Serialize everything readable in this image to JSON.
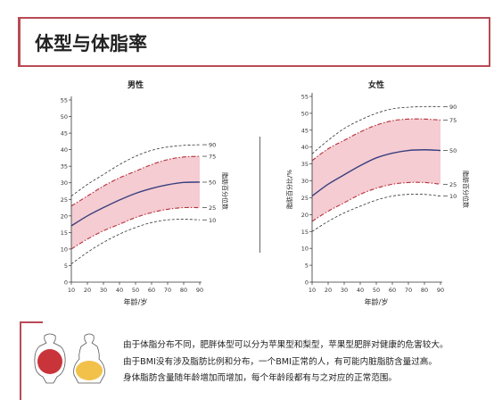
{
  "header": {
    "title": "体型与体脂率"
  },
  "charts": [
    {
      "title": "男性",
      "xlabel": "年龄/岁",
      "ylabel": "脂肪百分比/%",
      "right_label": "脂肪百分位数"
    },
    {
      "title": "女性",
      "xlabel": "年龄/岁",
      "ylabel": "脂肪百分比/%",
      "right_label": "脂肪百分位数"
    }
  ],
  "notes": [
    "由于体脂分布不同，肥胖体型可以分为苹果型和梨型，苹果型肥胖对健康的危害较大。",
    "由于BMI没有涉及脂肪比例和分布，一个BMI正常的人，有可能内脏脂肪含量过高。",
    "身体脂肪含量随年龄增加而增加，每个年龄段都有与之对应的正常范围。"
  ],
  "illustrations": {
    "apple_color": "#c9343a",
    "pear_color": "#f2c14a"
  },
  "colors": {
    "accent": "#b94a55",
    "band_fill": "#f4ccd2",
    "median_line": "#3a3f7e",
    "band_line": "#b5303a"
  },
  "chart_data": [
    {
      "type": "line",
      "title": "男性",
      "xlabel": "年龄/岁",
      "ylabel": "脂肪百分比/%",
      "xlim": [
        10,
        90
      ],
      "ylim": [
        0,
        55
      ],
      "xticks": [
        10,
        20,
        30,
        40,
        50,
        60,
        70,
        80,
        90
      ],
      "yticks": [
        0,
        5,
        10,
        15,
        20,
        25,
        30,
        35,
        40,
        45,
        50,
        55
      ],
      "x": [
        10,
        20,
        30,
        40,
        50,
        60,
        70,
        80,
        90
      ],
      "series": [
        {
          "name": "10",
          "values": [
            5.5,
            9.0,
            12.0,
            14.5,
            16.5,
            18.0,
            18.8,
            19.0,
            18.8
          ]
        },
        {
          "name": "25",
          "values": [
            10.0,
            13.0,
            15.5,
            17.5,
            19.5,
            21.0,
            22.0,
            22.5,
            22.5
          ]
        },
        {
          "name": "50",
          "values": [
            17.0,
            20.0,
            22.5,
            24.8,
            26.8,
            28.3,
            29.4,
            30.1,
            30.2
          ]
        },
        {
          "name": "75",
          "values": [
            23.0,
            26.0,
            29.0,
            31.5,
            33.5,
            35.5,
            37.0,
            37.8,
            38.0
          ]
        },
        {
          "name": "90",
          "values": [
            26.0,
            29.5,
            32.5,
            35.5,
            38.0,
            39.8,
            40.8,
            41.3,
            41.5
          ]
        }
      ],
      "right_ticks": [
        "90",
        "75",
        "50",
        "25",
        "10"
      ]
    },
    {
      "type": "line",
      "title": "女性",
      "xlabel": "年龄/岁",
      "ylabel": "脂肪百分比/%",
      "xlim": [
        10,
        90
      ],
      "ylim": [
        0,
        55
      ],
      "xticks": [
        10,
        20,
        30,
        40,
        50,
        60,
        70,
        80,
        90
      ],
      "yticks": [
        0,
        5,
        10,
        15,
        20,
        25,
        30,
        35,
        40,
        45,
        50,
        55
      ],
      "x": [
        10,
        20,
        30,
        40,
        50,
        60,
        70,
        80,
        90
      ],
      "series": [
        {
          "name": "10",
          "values": [
            15.0,
            18.0,
            20.5,
            22.5,
            24.3,
            25.5,
            26.0,
            26.0,
            25.5
          ]
        },
        {
          "name": "25",
          "values": [
            18.0,
            21.0,
            23.5,
            26.0,
            27.8,
            29.0,
            29.5,
            29.5,
            29.0
          ]
        },
        {
          "name": "50",
          "values": [
            25.5,
            29.0,
            31.8,
            34.5,
            36.8,
            38.2,
            39.0,
            39.2,
            39.0
          ]
        },
        {
          "name": "75",
          "values": [
            36.0,
            39.5,
            42.0,
            44.5,
            46.5,
            47.8,
            48.3,
            48.3,
            48.0
          ]
        },
        {
          "name": "90",
          "values": [
            38.0,
            42.0,
            45.5,
            48.0,
            50.0,
            51.3,
            51.8,
            52.0,
            52.0
          ]
        }
      ],
      "right_ticks": [
        "90",
        "75",
        "50",
        "25",
        "10"
      ]
    }
  ]
}
